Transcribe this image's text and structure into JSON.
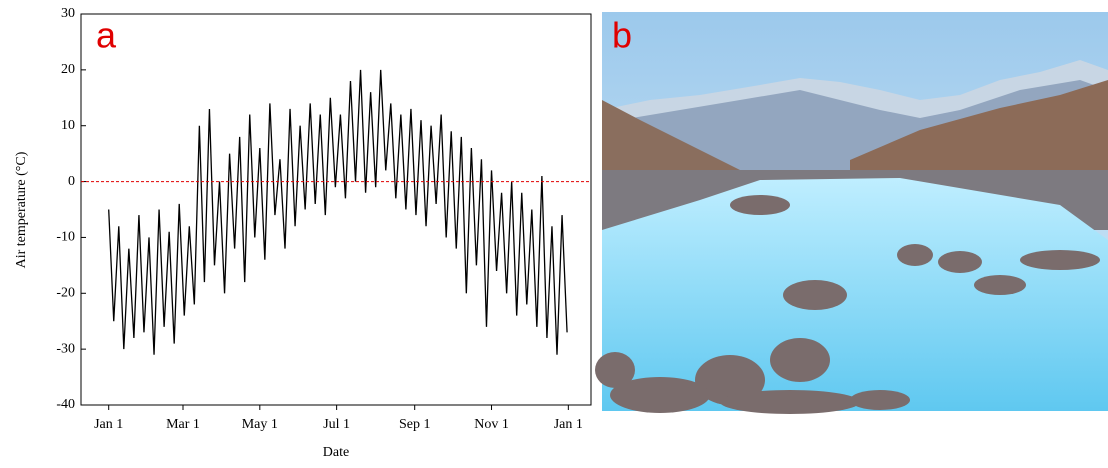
{
  "chart_data": {
    "type": "line",
    "panel_label": "a",
    "y_label": "Air temperature (°C)",
    "x_label": "Date",
    "x": [
      0,
      4,
      8,
      12,
      16,
      20,
      24,
      28,
      32,
      36,
      40,
      44,
      48,
      52,
      56,
      60,
      64,
      68,
      72,
      76,
      80,
      84,
      88,
      92,
      96,
      100,
      104,
      108,
      112,
      116,
      120,
      124,
      128,
      132,
      136,
      140,
      144,
      148,
      152,
      156,
      160,
      164,
      168,
      172,
      176,
      180,
      184,
      188,
      192,
      196,
      200,
      204,
      208,
      212,
      216,
      220,
      224,
      228,
      232,
      236,
      240,
      244,
      248,
      252,
      256,
      260,
      264,
      268,
      272,
      276,
      280,
      284,
      288,
      292,
      296,
      300,
      304,
      308,
      312,
      316,
      320,
      324,
      328,
      332,
      336,
      340,
      344,
      348,
      352,
      356,
      360,
      364
    ],
    "values": [
      -5,
      -25,
      -8,
      -30,
      -12,
      -28,
      -6,
      -27,
      -10,
      -31,
      -5,
      -26,
      -9,
      -29,
      -4,
      -24,
      -8,
      -22,
      10,
      -18,
      13,
      -15,
      0,
      -20,
      5,
      -12,
      8,
      -18,
      12,
      -10,
      6,
      -14,
      14,
      -6,
      4,
      -12,
      13,
      -8,
      10,
      -5,
      14,
      -4,
      12,
      -6,
      15,
      -1,
      12,
      -3,
      18,
      0,
      20,
      -2,
      16,
      -1,
      20,
      2,
      14,
      -3,
      12,
      -5,
      13,
      -6,
      11,
      -8,
      10,
      -4,
      12,
      -10,
      9,
      -12,
      8,
      -20,
      6,
      -15,
      4,
      -26,
      2,
      -16,
      -2,
      -20,
      0,
      -24,
      -2,
      -22,
      -5,
      -26,
      1,
      -28,
      -8,
      -31,
      -6,
      -27
    ],
    "color": "#000000",
    "xlim": [
      -22,
      383
    ],
    "xticks": [
      {
        "value": 0,
        "label": "Jan 1"
      },
      {
        "value": 59,
        "label": "Mar 1"
      },
      {
        "value": 120,
        "label": "May 1"
      },
      {
        "value": 181,
        "label": "Jul 1"
      },
      {
        "value": 243,
        "label": "Sep 1"
      },
      {
        "value": 304,
        "label": "Nov 1"
      },
      {
        "value": 365,
        "label": "Jan 1"
      }
    ],
    "ylim": [
      -40,
      30
    ],
    "yticks": [
      -40,
      -30,
      -20,
      -10,
      0,
      10,
      20,
      30
    ],
    "reference_line": {
      "value": 0,
      "color": "#e00000"
    }
  },
  "photo": {
    "panel_label": "b"
  }
}
